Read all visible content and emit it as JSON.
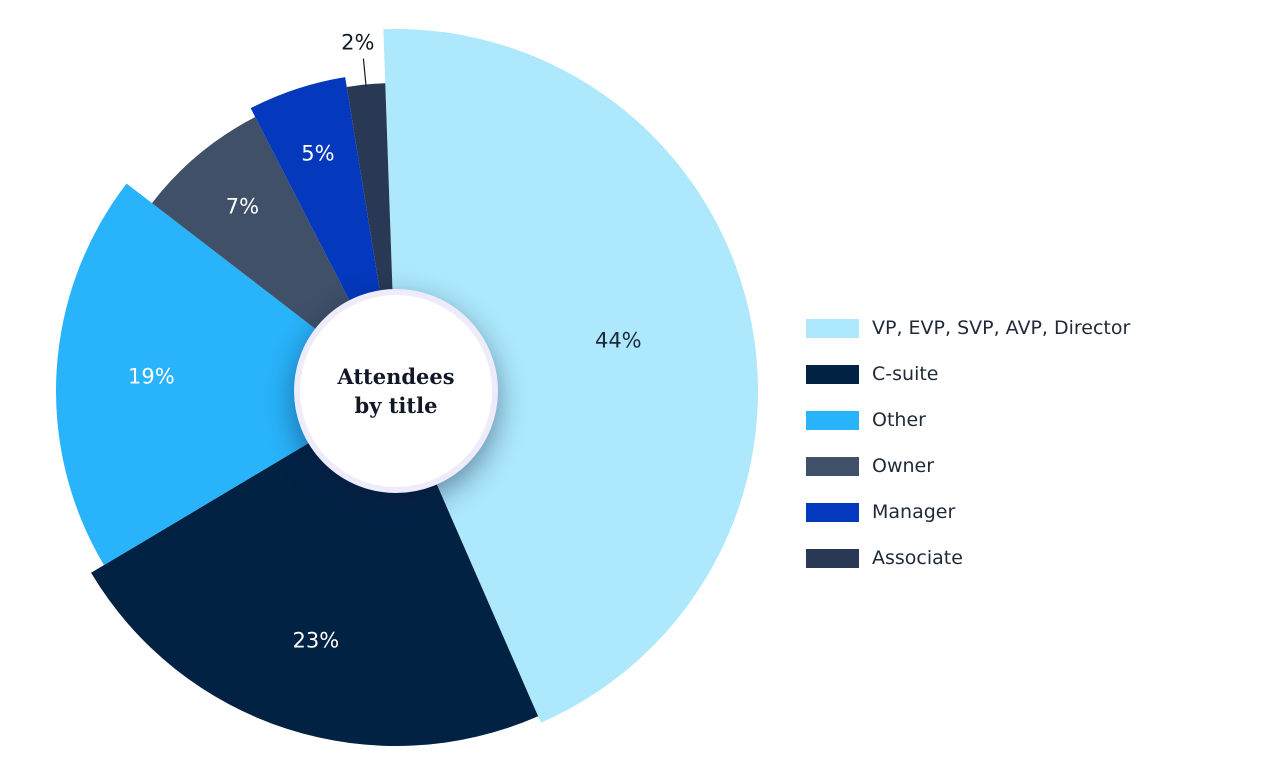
{
  "chart_data": {
    "type": "pie",
    "title": "Attendees by title",
    "legend_position": "right",
    "slices": [
      {
        "name": "VP, EVP, SVP, AVP, Director",
        "value": 44,
        "label": "44%",
        "color": "#ade8fc",
        "label_color": "#1e293b"
      },
      {
        "name": "C-suite",
        "value": 23,
        "label": "23%",
        "color": "#022244",
        "label_color": "#ffffff"
      },
      {
        "name": "Other",
        "value": 19,
        "label": "19%",
        "color": "#29b3fa",
        "label_color": "#ffffff"
      },
      {
        "name": "Owner",
        "value": 7,
        "label": "7%",
        "color": "#3f5068",
        "label_color": "#ffffff"
      },
      {
        "name": "Manager",
        "value": 5,
        "label": "5%",
        "color": "#0438bd",
        "label_color": "#ffffff"
      },
      {
        "name": "Associate",
        "value": 2,
        "label": "2%",
        "color": "#283855",
        "label_color": "#111827"
      }
    ]
  }
}
